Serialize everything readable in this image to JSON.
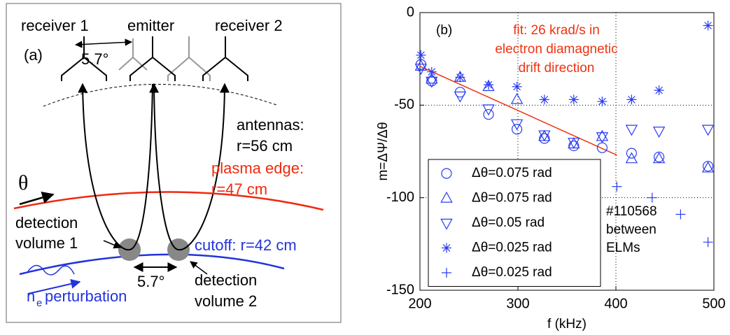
{
  "diagram": {
    "panel_label": "(a)",
    "receiver_1": "receiver 1",
    "emitter": "emitter",
    "receiver_2": "receiver 2",
    "antenna_angle": "5.7°",
    "antennas": [
      "antennas:",
      "r=56 cm"
    ],
    "plasma_edge": [
      "plasma edge:",
      "r=47 cm"
    ],
    "theta": "θ",
    "detection_volume_1": [
      "detection",
      "volume 1"
    ],
    "cutoff": "cutoff: r=42 cm",
    "volume_angle": "5.7°",
    "detection_volume_2": [
      "detection",
      "volume 2"
    ],
    "perturbation": {
      "symbol": "n",
      "subscript": "e",
      "text": "perturbation"
    }
  },
  "chart_data": {
    "type": "scatter",
    "panel_label": "(b)",
    "x_label": "f (kHz)",
    "y_label": "m=ΔΨ/Δθ",
    "xlim": [
      200,
      500
    ],
    "xticks": [
      200,
      300,
      400,
      500
    ],
    "ylim": [
      -150,
      0
    ],
    "yticks": [
      0,
      -50,
      -100,
      -150
    ],
    "grid": true,
    "legend": "lower left",
    "series": [
      {
        "name": "Δθ=0.075 rad",
        "marker": "circle",
        "color": "#2a3cf0",
        "x": [
          201,
          212,
          241,
          270,
          299,
          327,
          357,
          386,
          416,
          444,
          494
        ],
        "values": [
          -28,
          -37,
          -43,
          -55,
          -63,
          -68,
          -72,
          -73,
          -76,
          -78,
          -83
        ]
      },
      {
        "name": "Δθ=0.075 rad",
        "marker": "triangle-up",
        "color": "#2a3cf0",
        "x": [
          201,
          212,
          241,
          270,
          299,
          327,
          357,
          386,
          416,
          444,
          494
        ],
        "values": [
          -29,
          -36,
          -35,
          -40,
          -47,
          -67,
          -71,
          -67,
          -79,
          -79,
          -84
        ]
      },
      {
        "name": "Δθ=0.05 rad",
        "marker": "triangle-down",
        "color": "#2a3cf0",
        "x": [
          201,
          212,
          241,
          270,
          299,
          327,
          357,
          386,
          416,
          444,
          494
        ],
        "values": [
          -30,
          -37,
          -45,
          -52,
          -60,
          -66,
          -70,
          -67,
          -63,
          -64,
          -63
        ]
      },
      {
        "name": "Δθ=0.025 rad",
        "marker": "star",
        "color": "#2a3cf0",
        "x": [
          201,
          212,
          241,
          270,
          299,
          327,
          357,
          386,
          416,
          444,
          494
        ],
        "values": [
          -23,
          -32,
          -35,
          -39,
          -40,
          -47,
          -47,
          -48,
          -47,
          -42,
          -7
        ]
      },
      {
        "name": "Δθ=0.025 rad",
        "marker": "plus",
        "color": "#2a3cf0",
        "x": [
          401,
          437,
          466,
          494
        ],
        "values": [
          -94,
          -100,
          -109,
          -124
        ]
      }
    ],
    "fit": {
      "color": "#ee3311",
      "x": [
        200,
        401
      ],
      "values": [
        -29,
        -77
      ]
    },
    "annotation": [
      "fit: 26 krad/s in",
      "electron diamagnetic",
      "drift direction"
    ],
    "note": [
      "#110568",
      "between",
      "ELMs"
    ]
  }
}
